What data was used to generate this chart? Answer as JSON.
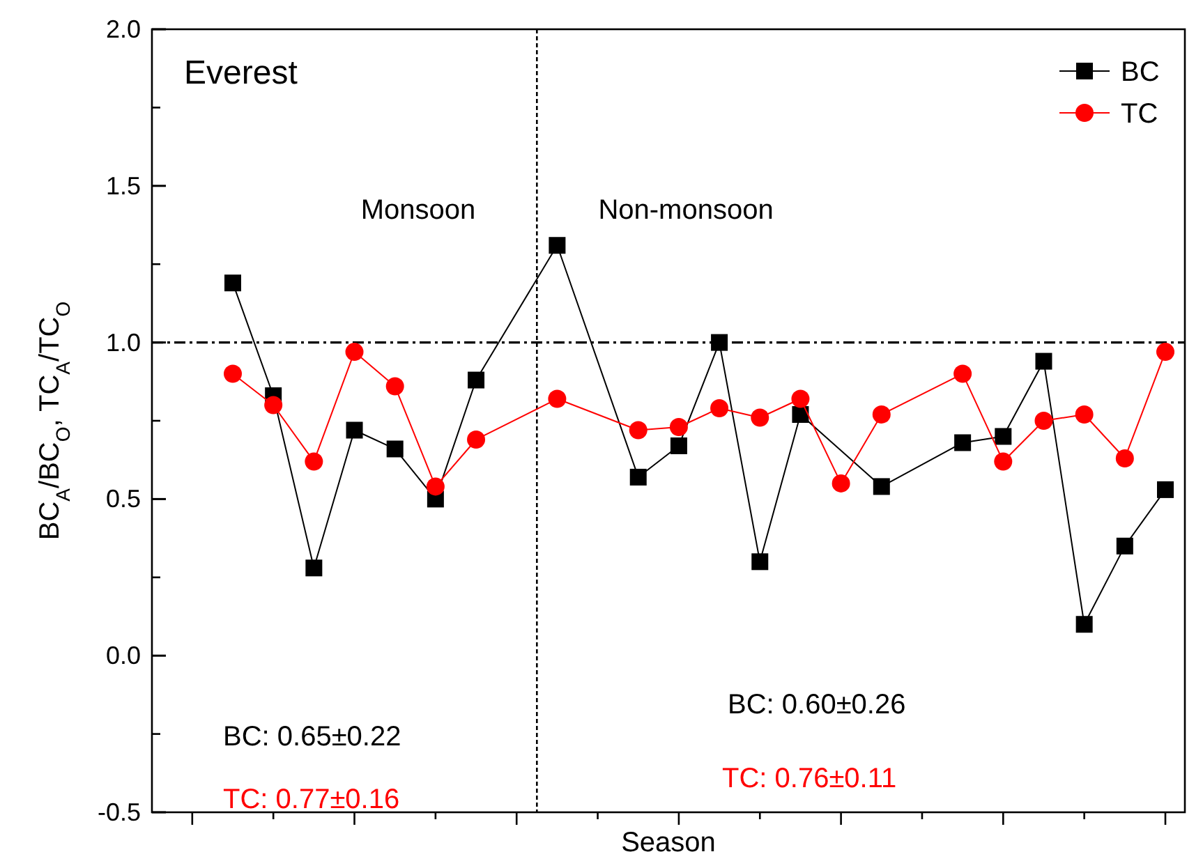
{
  "chart_data": {
    "type": "line",
    "xlabel": "Season",
    "ylabel": "BC$_{A}$/BC$_{O}$, TC$_{A}$/TC$_{O}$",
    "categories": [
      null,
      null,
      null,
      null,
      null,
      null,
      null,
      null,
      null,
      null,
      null,
      null,
      null,
      null,
      null,
      null,
      null,
      null,
      null,
      null,
      null,
      null,
      null,
      null
    ],
    "ylim": [
      -0.5,
      2.0
    ],
    "yticks": [
      {
        "value": -0.5,
        "label": "-0.5"
      },
      {
        "value": 0,
        "label": "0.0"
      },
      {
        "value": 0.5,
        "label": "0.5"
      },
      {
        "value": 1,
        "label": "1.0"
      },
      {
        "value": 1.5,
        "label": "1.5"
      },
      {
        "value": 2,
        "label": "2.0"
      }
    ],
    "tick_labels": "y",
    "grid": false,
    "legend": "top right",
    "line_style": "solid",
    "series": [
      {
        "name": "BC",
        "color": "#000000",
        "marker": "square",
        "values": [
          1.19,
          0.83,
          0.28,
          0.72,
          0.66,
          0.5,
          0.88,
          null,
          1.31,
          null,
          0.57,
          0.67,
          1.0,
          0.3,
          0.77,
          null,
          0.54,
          null,
          0.68,
          0.7,
          0.94,
          0.1,
          0.35,
          0.53
        ]
      },
      {
        "name": "TC",
        "color": "#ff0000",
        "marker": "circle",
        "values": [
          0.9,
          0.8,
          0.62,
          0.97,
          0.86,
          0.54,
          0.69,
          null,
          0.82,
          null,
          0.72,
          0.73,
          0.79,
          0.76,
          0.82,
          0.55,
          0.77,
          null,
          0.9,
          0.62,
          0.75,
          0.77,
          0.63,
          0.97
        ]
      }
    ],
    "ref_lines": [
      {
        "axis": "y",
        "value": 1.0,
        "line_style": "dashed",
        "color": "#000000"
      }
    ],
    "annotations": [
      "Everest",
      "Monsoon",
      "Non-monsoon",
      "BC: 0.65±0.22",
      "TC: 0.77±0.16",
      "BC: 0.60±0.26",
      "TC: 0.76±0.11"
    ]
  }
}
